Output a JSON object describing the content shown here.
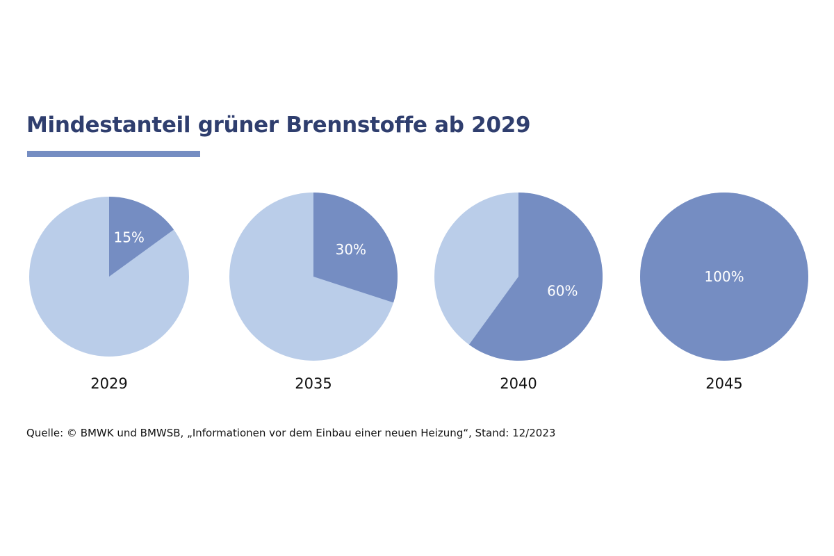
{
  "chart_data": {
    "type": "pie",
    "title": "Mindestanteil grüner Brennstoffe ab 2029",
    "colors": {
      "share": "#758dc2",
      "remainder": "#bacde9",
      "title": "#2f3e6e"
    },
    "pies": [
      {
        "label": "2029",
        "value": 15,
        "data_label": "15%"
      },
      {
        "label": "2035",
        "value": 30,
        "data_label": "30%"
      },
      {
        "label": "2040",
        "value": 60,
        "data_label": "60%"
      },
      {
        "label": "2045",
        "value": 100,
        "data_label": "100%"
      }
    ],
    "source": "Quelle: © BMWK und BMWSB, „Informationen vor dem Einbau einer neuen Heizung“, Stand: 12/2023"
  }
}
